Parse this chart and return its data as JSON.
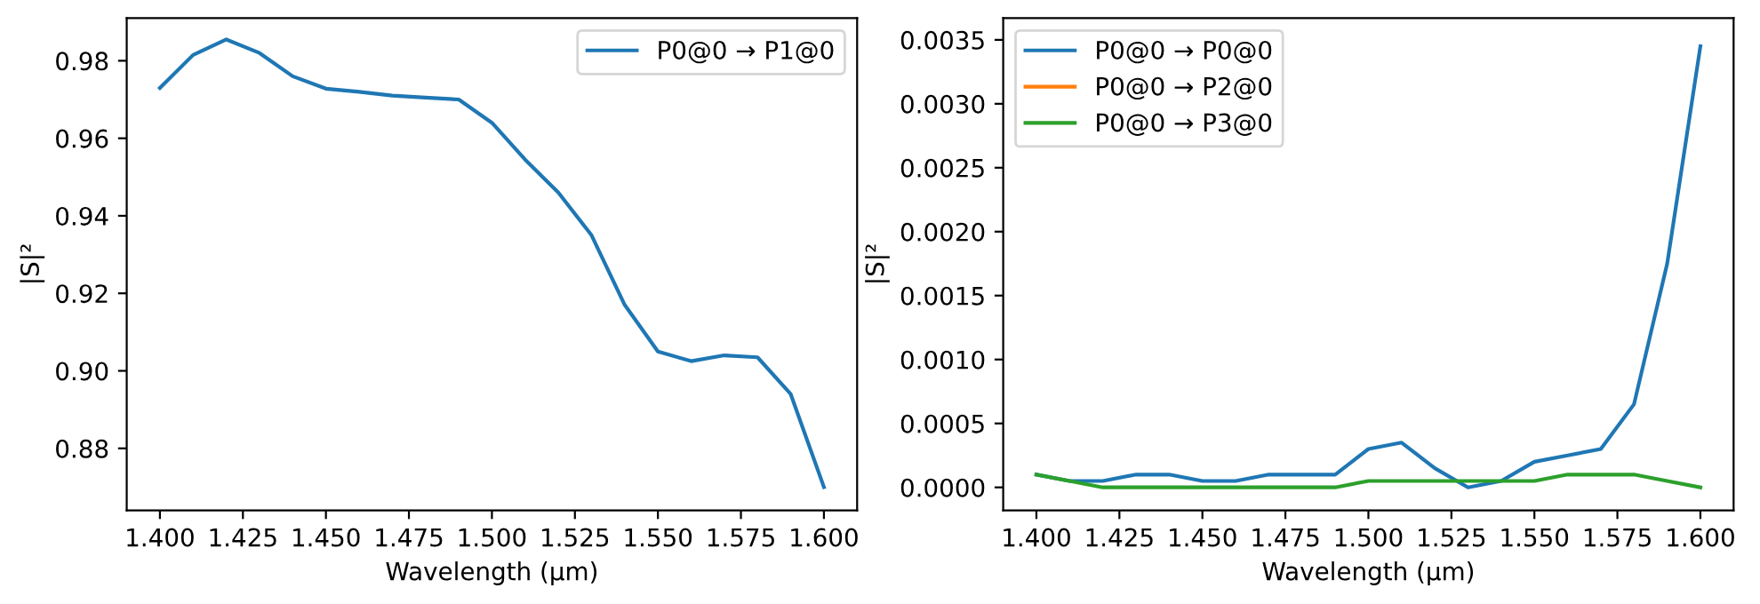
{
  "chart_data": [
    {
      "type": "line",
      "xlabel": "Wavelength (µm)",
      "ylabel": "|S|²",
      "legend": "top right",
      "grid": false,
      "x": [
        1.4,
        1.41,
        1.42,
        1.43,
        1.44,
        1.45,
        1.46,
        1.47,
        1.48,
        1.49,
        1.5,
        1.51,
        1.52,
        1.53,
        1.54,
        1.55,
        1.56,
        1.57,
        1.58,
        1.59,
        1.6
      ],
      "series": [
        {
          "name": "P0@0 → P1@0",
          "color": "#1f77b4",
          "values": [
            0.973,
            0.9815,
            0.9855,
            0.982,
            0.976,
            0.9728,
            0.972,
            0.971,
            0.9705,
            0.97,
            0.964,
            0.9545,
            0.946,
            0.935,
            0.917,
            0.905,
            0.9025,
            0.904,
            0.9035,
            0.894,
            0.87
          ]
        }
      ],
      "xlim": [
        1.39,
        1.61
      ],
      "ylim": [
        0.864,
        0.991
      ],
      "xticks": [
        {
          "value": 1.4,
          "label": "1.400"
        },
        {
          "value": 1.425,
          "label": "1.425"
        },
        {
          "value": 1.45,
          "label": "1.450"
        },
        {
          "value": 1.475,
          "label": "1.475"
        },
        {
          "value": 1.5,
          "label": "1.500"
        },
        {
          "value": 1.525,
          "label": "1.525"
        },
        {
          "value": 1.55,
          "label": "1.550"
        },
        {
          "value": 1.575,
          "label": "1.575"
        },
        {
          "value": 1.6,
          "label": "1.600"
        }
      ],
      "yticks": [
        {
          "value": 0.88,
          "label": "0.88"
        },
        {
          "value": 0.9,
          "label": "0.90"
        },
        {
          "value": 0.92,
          "label": "0.92"
        },
        {
          "value": 0.94,
          "label": "0.94"
        },
        {
          "value": 0.96,
          "label": "0.96"
        },
        {
          "value": 0.98,
          "label": "0.98"
        }
      ]
    },
    {
      "type": "line",
      "xlabel": "Wavelength (µm)",
      "ylabel": "|S|²",
      "legend": "top left",
      "grid": false,
      "x": [
        1.4,
        1.41,
        1.42,
        1.43,
        1.44,
        1.45,
        1.46,
        1.47,
        1.48,
        1.49,
        1.5,
        1.51,
        1.52,
        1.53,
        1.54,
        1.55,
        1.56,
        1.57,
        1.58,
        1.59,
        1.6
      ],
      "series": [
        {
          "name": "P0@0 → P0@0",
          "color": "#1f77b4",
          "values": [
            0.0001,
            5e-05,
            5e-05,
            0.0001,
            0.0001,
            5e-05,
            5e-05,
            0.0001,
            0.0001,
            0.0001,
            0.0003,
            0.00035,
            0.00015,
            0.0,
            5e-05,
            0.0002,
            0.00025,
            0.0003,
            0.00065,
            0.00175,
            0.00345
          ]
        },
        {
          "name": "P0@0 → P2@0",
          "color": "#ff7f0e",
          "values": [
            null,
            null,
            null,
            null,
            null,
            null,
            null,
            null,
            null,
            null,
            null,
            null,
            null,
            null,
            null,
            null,
            null,
            null,
            null,
            null,
            null
          ]
        },
        {
          "name": "P0@0 → P3@0",
          "color": "#2ca02c",
          "values": [
            0.0001,
            5e-05,
            0.0,
            0.0,
            0.0,
            0.0,
            0.0,
            0.0,
            0.0,
            0.0,
            5e-05,
            5e-05,
            5e-05,
            5e-05,
            5e-05,
            5e-05,
            0.0001,
            0.0001,
            0.0001,
            5e-05,
            0.0
          ]
        }
      ],
      "xlim": [
        1.39,
        1.61
      ],
      "ylim": [
        -0.00018,
        0.00367
      ],
      "xticks": [
        {
          "value": 1.4,
          "label": "1.400"
        },
        {
          "value": 1.425,
          "label": "1.425"
        },
        {
          "value": 1.45,
          "label": "1.450"
        },
        {
          "value": 1.475,
          "label": "1.475"
        },
        {
          "value": 1.5,
          "label": "1.500"
        },
        {
          "value": 1.525,
          "label": "1.525"
        },
        {
          "value": 1.55,
          "label": "1.550"
        },
        {
          "value": 1.575,
          "label": "1.575"
        },
        {
          "value": 1.6,
          "label": "1.600"
        }
      ],
      "yticks": [
        {
          "value": 0.0,
          "label": "0.0000"
        },
        {
          "value": 0.0005,
          "label": "0.0005"
        },
        {
          "value": 0.001,
          "label": "0.0010"
        },
        {
          "value": 0.0015,
          "label": "0.0015"
        },
        {
          "value": 0.002,
          "label": "0.0020"
        },
        {
          "value": 0.0025,
          "label": "0.0025"
        },
        {
          "value": 0.003,
          "label": "0.0030"
        },
        {
          "value": 0.0035,
          "label": "0.0035"
        }
      ]
    }
  ]
}
